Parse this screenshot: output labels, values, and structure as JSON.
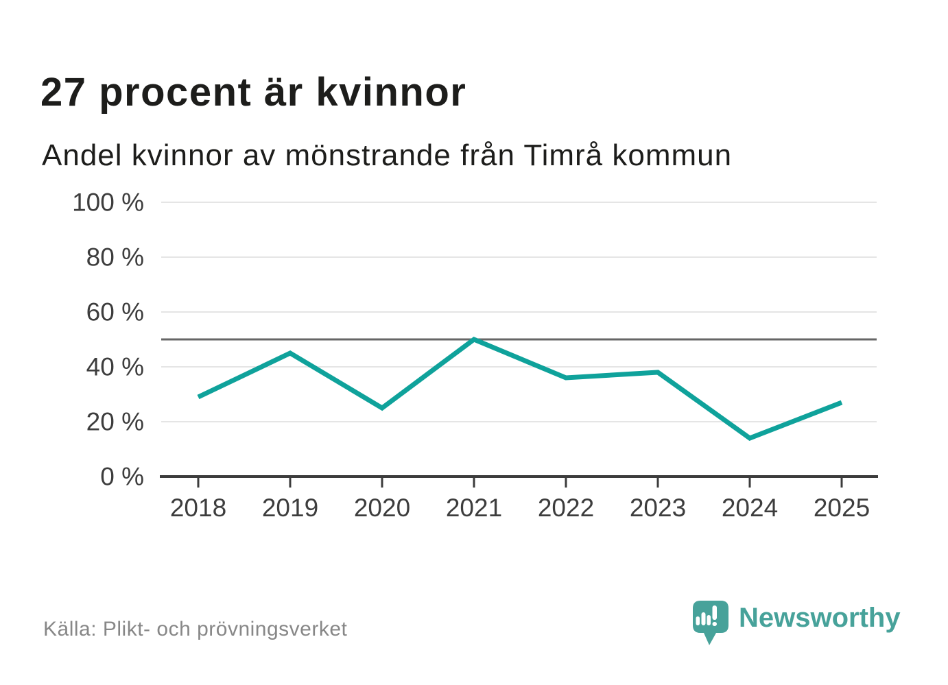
{
  "header": {
    "title": "27 procent är kvinnor",
    "subtitle": "Andel kvinnor av mönstrande från Timrå kommun"
  },
  "chart_data": {
    "type": "line",
    "title": "27 procent är kvinnor",
    "subtitle": "Andel kvinnor av mönstrande från Timrå kommun",
    "categories": [
      "2018",
      "2019",
      "2020",
      "2021",
      "2022",
      "2023",
      "2024",
      "2025"
    ],
    "series": [
      {
        "name": "Andel kvinnor av mönstrande",
        "values": [
          29,
          45,
          25,
          50,
          36,
          38,
          14,
          27
        ],
        "unit": "%"
      }
    ],
    "xlabel": "",
    "ylabel": "",
    "ylim": [
      0,
      100
    ],
    "yticks": [
      0,
      20,
      40,
      60,
      80,
      100
    ],
    "ytick_suffix": " %",
    "reference_line": 50,
    "grid": true,
    "legend_position": "none"
  },
  "footer": {
    "source": "Källa: Plikt- och prövningsverket",
    "brand": "Newsworthy"
  },
  "colors": {
    "line": "#0fa29b",
    "gridline": "#e5e5e5",
    "reference_line": "#666666",
    "axis": "#3c3c3c",
    "tick_label": "#3d3d3d",
    "title_text": "#1d1d1b",
    "source_text": "#878787",
    "brand_teal": "#47a29a"
  }
}
